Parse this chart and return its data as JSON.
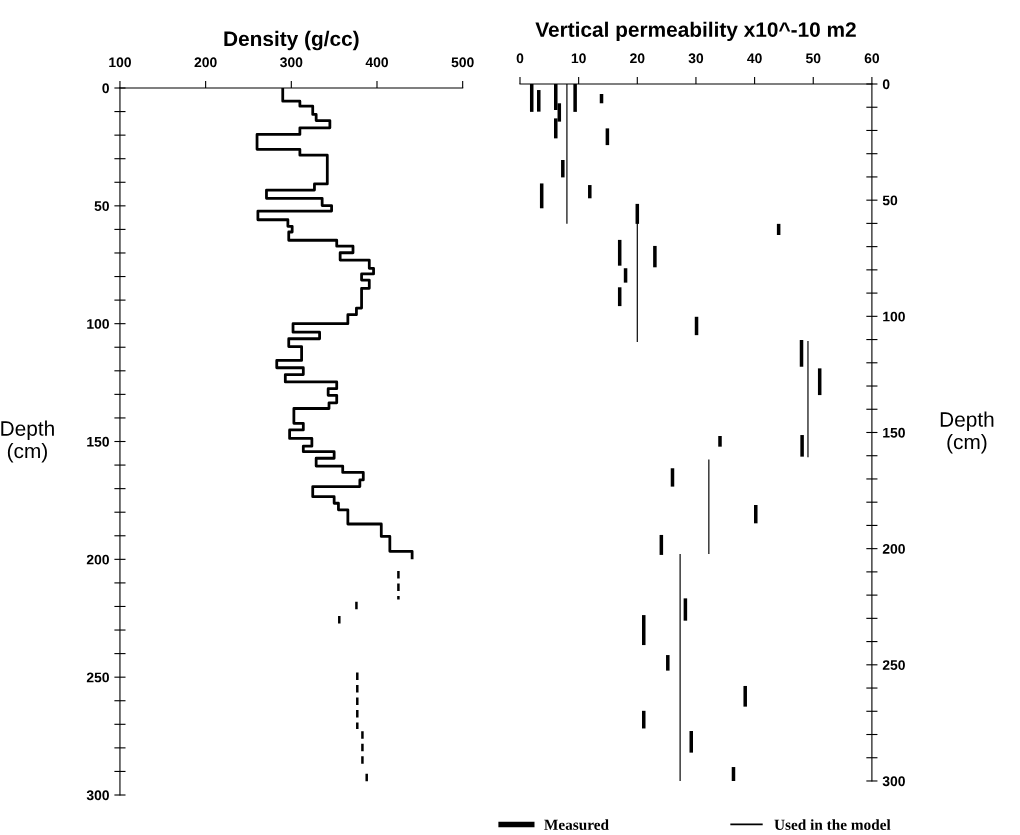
{
  "chart_data": [
    {
      "type": "line",
      "xlabel": "Density (g/cc)",
      "ylabel": "Depth\n(cm)",
      "xlim": [
        100,
        500
      ],
      "xticks": [
        100,
        200,
        300,
        400,
        500
      ],
      "ylim": [
        300,
        0
      ],
      "yticks": [
        0,
        {
          "value": 10,
          "label": null
        },
        {
          "value": 20,
          "label": null
        },
        {
          "value": 30,
          "label": null
        },
        {
          "value": 40,
          "label": null
        },
        50,
        {
          "value": 60,
          "label": null
        },
        {
          "value": 70,
          "label": null
        },
        {
          "value": 80,
          "label": null
        },
        {
          "value": 90,
          "label": null
        },
        100,
        {
          "value": 110,
          "label": null
        },
        {
          "value": 120,
          "label": null
        },
        {
          "value": 130,
          "label": null
        },
        {
          "value": 140,
          "label": null
        },
        150,
        {
          "value": 160,
          "label": null
        },
        {
          "value": 170,
          "label": null
        },
        {
          "value": 180,
          "label": null
        },
        {
          "value": 190,
          "label": null
        },
        200,
        {
          "value": 210,
          "label": null
        },
        {
          "value": 220,
          "label": null
        },
        {
          "value": 230,
          "label": null
        },
        {
          "value": 240,
          "label": null
        },
        250,
        {
          "value": 260,
          "label": null
        },
        {
          "value": 270,
          "label": null
        },
        {
          "value": 280,
          "label": null
        },
        {
          "value": 290,
          "label": null
        },
        300
      ],
      "grid": false,
      "legend": false,
      "marker": "none",
      "series": [
        {
          "color": "#000000",
          "line_style": "solid",
          "x": [
            290,
            290,
            310,
            310,
            325,
            325,
            329,
            329,
            345,
            345,
            310,
            310,
            260,
            260,
            310,
            310,
            342,
            342,
            327,
            327,
            271,
            271,
            336,
            336,
            347,
            347,
            261,
            261,
            296,
            296,
            301,
            301,
            297,
            297,
            353,
            353,
            372,
            372,
            357,
            357,
            391,
            391,
            396,
            396,
            382,
            382,
            391,
            391,
            382,
            382,
            376,
            376,
            366,
            366,
            302,
            302,
            333,
            333,
            297,
            297,
            312,
            312,
            283,
            283,
            314,
            314,
            293,
            293,
            353,
            353,
            343,
            343,
            353,
            353,
            344,
            344,
            303,
            303,
            314,
            314,
            298,
            298,
            324,
            324,
            314,
            314,
            350,
            350,
            329,
            329,
            360,
            360,
            384,
            384,
            380,
            380,
            325,
            325,
            350,
            350,
            355,
            355,
            366,
            366,
            405,
            405,
            415,
            415,
            441,
            441
          ],
          "values": [
            0,
            5.6,
            5.6,
            7.7,
            7.7,
            11.2,
            11.2,
            13.8,
            13.8,
            16.9,
            16.9,
            19.7,
            19.7,
            26,
            26,
            28.5,
            28.5,
            40.7,
            40.7,
            43.3,
            43.3,
            46.8,
            46.8,
            49.9,
            49.9,
            52.2,
            52.2,
            55.9,
            55.9,
            58.7,
            58.7,
            61.1,
            61.1,
            64.6,
            64.6,
            67.1,
            67.1,
            69.9,
            69.9,
            73,
            73,
            76.5,
            76.5,
            78.9,
            78.9,
            81.5,
            81.5,
            85,
            85,
            93.4,
            93.4,
            96.2,
            96.2,
            100,
            100,
            103.6,
            103.6,
            106.4,
            106.4,
            109.7,
            109.7,
            115.6,
            115.6,
            118.7,
            118.7,
            121.6,
            121.6,
            124.7,
            124.7,
            127.6,
            127.6,
            130.4,
            130.4,
            133.6,
            133.6,
            136,
            136,
            142.3,
            142.3,
            145.1,
            145.1,
            148.7,
            148.7,
            152,
            152,
            154.3,
            154.3,
            157.1,
            157.1,
            160.4,
            160.4,
            163.1,
            163.1,
            166.3,
            166.3,
            169.1,
            169.1,
            173.4,
            173.4,
            176.2,
            176.2,
            179,
            179,
            185,
            185,
            190.3,
            190.3,
            196.6,
            196.6,
            200
          ]
        },
        {
          "color": "#000000",
          "line_style": "dashed",
          "x": [
            425,
            425,
            null,
            376,
            376,
            null,
            356,
            356,
            null,
            377,
            377,
            null,
            383,
            383,
            null,
            388,
            388
          ],
          "values": [
            205,
            217,
            null,
            218,
            222,
            null,
            224,
            228,
            null,
            248,
            272,
            null,
            273,
            287,
            null,
            291,
            295
          ]
        }
      ]
    },
    {
      "type": "bar",
      "title": "Vertical permeability x10^-10 m2",
      "ylabel": "Depth\n(cm)",
      "xlim": [
        0,
        60
      ],
      "xticks": [
        0,
        10,
        20,
        30,
        40,
        50,
        60
      ],
      "ylim": [
        300,
        0
      ],
      "yticks": [
        0,
        {
          "value": 10,
          "label": null
        },
        {
          "value": 20,
          "label": null
        },
        {
          "value": 30,
          "label": null
        },
        {
          "value": 40,
          "label": null
        },
        50,
        {
          "value": 60,
          "label": null
        },
        {
          "value": 70,
          "label": null
        },
        {
          "value": 80,
          "label": null
        },
        {
          "value": 90,
          "label": null
        },
        100,
        {
          "value": 110,
          "label": null
        },
        {
          "value": 120,
          "label": null
        },
        {
          "value": 130,
          "label": null
        },
        {
          "value": 140,
          "label": null
        },
        150,
        {
          "value": 160,
          "label": null
        },
        {
          "value": 170,
          "label": null
        },
        {
          "value": 180,
          "label": null
        },
        {
          "value": 190,
          "label": null
        },
        200,
        {
          "value": 210,
          "label": null
        },
        {
          "value": 220,
          "label": null
        },
        {
          "value": 230,
          "label": null
        },
        {
          "value": 240,
          "label": null
        },
        250,
        {
          "value": 260,
          "label": null
        },
        {
          "value": 270,
          "label": null
        },
        {
          "value": 280,
          "label": null
        },
        {
          "value": 290,
          "label": null
        },
        300
      ],
      "grid": false,
      "legend": "bottom",
      "series": [
        {
          "name": "Measured",
          "color": "#000000",
          "x": [
            2.0,
            3.2,
            3.7,
            6.1,
            6.7,
            7.3,
            9.4,
            11.9,
            13.9,
            14.9,
            17.0,
            18.0,
            20.0,
            21.1,
            23.0,
            24.1,
            25.2,
            26.0,
            28.2,
            29.2,
            30.1,
            34.1,
            36.4,
            38.4,
            40.2,
            44.1,
            48.0,
            48.1,
            51.1
          ],
          "base": [
            0,
            2.6,
            42.8,
            0,
            8.3,
            32.7,
            0,
            43.5,
            4.3,
            19.1,
            67.1,
            79.3,
            51.6,
            228.6,
            69.7,
            194.1,
            245.8,
            165.4,
            221.4,
            278.5,
            100.2,
            151.5,
            294,
            259.1,
            181.2,
            60.2,
            110.2,
            151.1,
            122.4
          ],
          "values": [
            12,
            9.3,
            10.7,
            11.2,
            7.9,
            7.5,
            12,
            5.7,
            4,
            7.2,
            11.1,
            6.2,
            8.6,
            12.9,
            9.2,
            8.6,
            6.7,
            7.9,
            9.6,
            9.3,
            7.9,
            4.6,
            6,
            8.9,
            7.9,
            4.8,
            11.5,
            9.3,
            11.5
          ]
        },
        {
          "name": "Used in the model",
          "color": "#000000",
          "x": [
            8.0,
            20.0,
            27.3,
            32.2,
            49.1
          ],
          "base": [
            0,
            51.6,
            202.3,
            161.6,
            110.6
          ],
          "values": [
            60.2,
            59.4,
            97.7,
            40.7,
            50.1
          ]
        },
        {
          "color": "#000000",
          "x": [
            6.1,
            17.0,
            21.1
          ],
          "base": [
            14.8,
            87.5,
            269.8
          ],
          "values": [
            8.6,
            8.1,
            7.6
          ]
        }
      ]
    }
  ]
}
